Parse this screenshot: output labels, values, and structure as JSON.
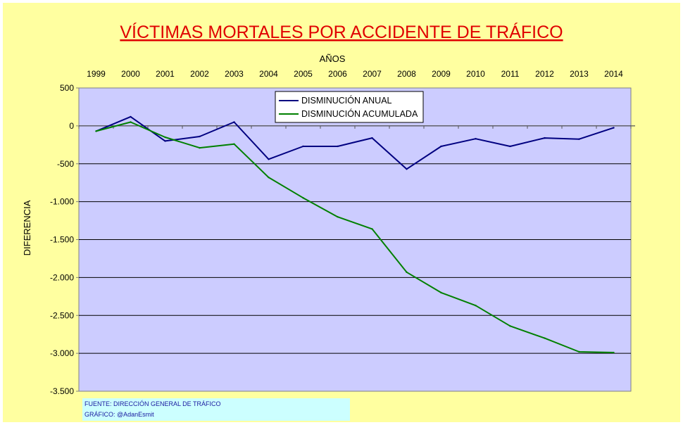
{
  "chart_data": {
    "type": "line",
    "title": "VÍCTIMAS MORTALES POR ACCIDENTE DE TRÁFICO",
    "xlabel": "AÑOS",
    "ylabel": "DIFERENCIA",
    "x": [
      "1999",
      "2000",
      "2001",
      "2002",
      "2003",
      "2004",
      "2005",
      "2006",
      "2007",
      "2008",
      "2009",
      "2010",
      "2011",
      "2012",
      "2013",
      "2014"
    ],
    "ylim": [
      -3500,
      500
    ],
    "yticks": [
      500,
      0,
      -500,
      -1000,
      -1500,
      -2000,
      -2500,
      -3000,
      -3500
    ],
    "ytick_labels": [
      "500",
      "0",
      "-500",
      "-1.000",
      "-1.500",
      "-2.000",
      "-2.500",
      "-3.000",
      "-3.500"
    ],
    "x_axis_position": "top",
    "grid": "horizontal",
    "legend_position": "top-center",
    "series": [
      {
        "name": "DISMINUCIÓN ANUAL",
        "color": "#000080",
        "values": [
          -70,
          120,
          -200,
          -140,
          50,
          -440,
          -270,
          -270,
          -160,
          -570,
          -270,
          -170,
          -270,
          -160,
          -175,
          -25
        ]
      },
      {
        "name": "DISMINUCIÓN ACUMULADA",
        "color": "#008000",
        "values": [
          -70,
          50,
          -150,
          -290,
          -240,
          -680,
          -950,
          -1200,
          -1360,
          -1930,
          -2200,
          -2370,
          -2640,
          -2800,
          -2980,
          -2990
        ]
      }
    ]
  },
  "colors": {
    "chart_background": "#ffffa0",
    "plot_background": "#ccccff",
    "title": "#e00000",
    "source_box": "#ccffff",
    "source_text": "#1a1aa0"
  },
  "source": {
    "line1": "FUENTE: DIRECCIÓN GENERAL DE TRÁFICO",
    "line2": "GRÁFICO: @AdanEsmit"
  }
}
